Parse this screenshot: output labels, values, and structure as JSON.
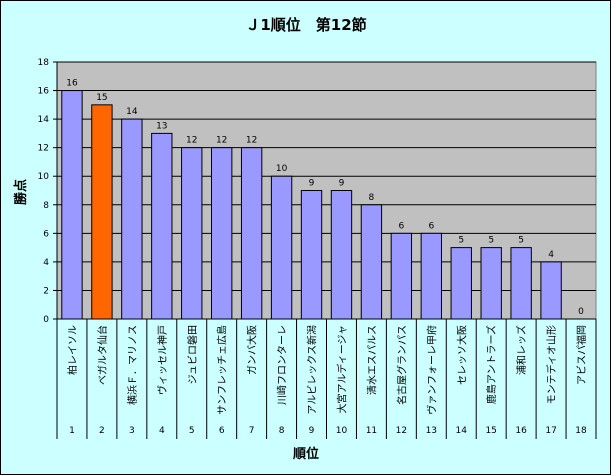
{
  "chart_data": {
    "type": "bar",
    "title": "Ｊ1順位　第12節",
    "xlabel": "順位",
    "ylabel": "勝点",
    "ylim": [
      0,
      18
    ],
    "ytick_step": 2,
    "grid": true,
    "legend": "none",
    "categories": [
      "柏レイソル",
      "ベガルタ仙台",
      "横浜Ｆ．マリノス",
      "ヴィッセル神戸",
      "ジュビロ磐田",
      "サンフレッチェ広島",
      "ガンバ大阪",
      "川崎フロンターレ",
      "アルビレックス新潟",
      "大宮アルディージャ",
      "清水エスパルス",
      "名古屋グランパス",
      "ヴァンフォーレ甲府",
      "セレッソ大阪",
      "鹿島アントラーズ",
      "浦和レッズ",
      "モンテディオ山形",
      "アビスパ福岡"
    ],
    "ranks": [
      "1",
      "2",
      "3",
      "4",
      "5",
      "6",
      "7",
      "8",
      "9",
      "10",
      "11",
      "12",
      "13",
      "14",
      "15",
      "16",
      "17",
      "18"
    ],
    "values": [
      16,
      15,
      14,
      13,
      12,
      12,
      12,
      10,
      9,
      9,
      8,
      6,
      6,
      5,
      5,
      5,
      4,
      0
    ],
    "highlight_index": 1,
    "colors": {
      "bar": "#9999ff",
      "highlight": "#ff6600",
      "plot_bg": "#c0c0c0",
      "chart_bg": "#ccffff",
      "grid": "#000000"
    }
  }
}
